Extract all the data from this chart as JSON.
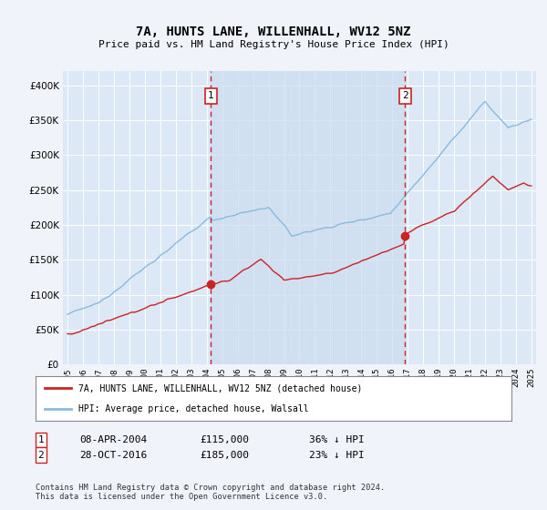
{
  "title": "7A, HUNTS LANE, WILLENHALL, WV12 5NZ",
  "subtitle": "Price paid vs. HM Land Registry's House Price Index (HPI)",
  "background_color": "#f0f4fa",
  "plot_bg_color": "#dce8f5",
  "shade_color": "#ccddf0",
  "legend_label_red": "7A, HUNTS LANE, WILLENHALL, WV12 5NZ (detached house)",
  "legend_label_blue": "HPI: Average price, detached house, Walsall",
  "annotation1": {
    "label": "1",
    "date_x": 2004.27,
    "price": 115000,
    "text_date": "08-APR-2004",
    "text_price": "£115,000",
    "text_pct": "36% ↓ HPI"
  },
  "annotation2": {
    "label": "2",
    "date_x": 2016.83,
    "price": 185000,
    "text_date": "28-OCT-2016",
    "text_price": "£185,000",
    "text_pct": "23% ↓ HPI"
  },
  "footnote": "Contains HM Land Registry data © Crown copyright and database right 2024.\nThis data is licensed under the Open Government Licence v3.0.",
  "ylim": [
    0,
    420000
  ],
  "yticks": [
    0,
    50000,
    100000,
    150000,
    200000,
    250000,
    300000,
    350000,
    400000
  ],
  "xlim": [
    1994.7,
    2025.3
  ],
  "xticks": [
    1995,
    1996,
    1997,
    1998,
    1999,
    2000,
    2001,
    2002,
    2003,
    2004,
    2005,
    2006,
    2007,
    2008,
    2009,
    2010,
    2011,
    2012,
    2013,
    2014,
    2015,
    2016,
    2017,
    2018,
    2019,
    2020,
    2021,
    2022,
    2023,
    2024,
    2025
  ],
  "red_color": "#cc2222",
  "blue_color": "#88bbdd"
}
